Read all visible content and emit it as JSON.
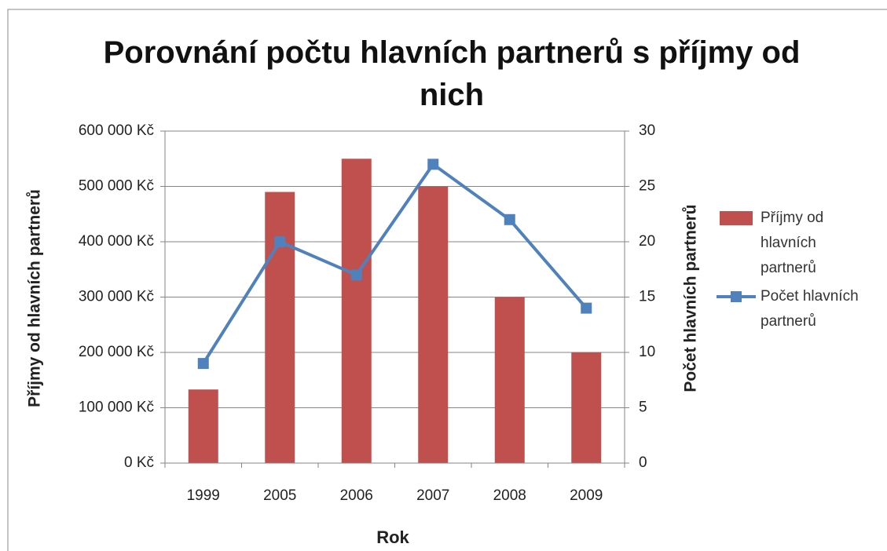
{
  "chart_data": {
    "type": "bar-line",
    "title": "Porovnání počtu hlavních partnerů s příjmy od nich",
    "xlabel": "Rok",
    "ylabel": "Příjmy od hlavních partnerů",
    "y2label": "Počet hlavních partnerů",
    "categories": [
      "1999",
      "2005",
      "2006",
      "2007",
      "2008",
      "2009"
    ],
    "series": [
      {
        "name": "Příjmy od hlavních partnerů",
        "type": "bar",
        "color": "#c0504d",
        "values": [
          133000,
          490000,
          550000,
          500000,
          300000,
          200000
        ]
      },
      {
        "name": "Počet hlavních partnerů",
        "type": "line",
        "axis": "y2",
        "color": "#4f81bd",
        "values": [
          9,
          20,
          17,
          27,
          22,
          14
        ]
      }
    ],
    "ylim": [
      0,
      600000
    ],
    "yticks": [
      {
        "value": 0,
        "label": "0 Kč"
      },
      {
        "value": 100000,
        "label": "100 000 Kč"
      },
      {
        "value": 200000,
        "label": "200 000 Kč"
      },
      {
        "value": 300000,
        "label": "300 000 Kč"
      },
      {
        "value": 400000,
        "label": "400 000 Kč"
      },
      {
        "value": 500000,
        "label": "500 000 Kč"
      },
      {
        "value": 600000,
        "label": "600 000 Kč"
      }
    ],
    "y2lim": [
      0,
      30
    ],
    "y2ticks": [
      0,
      5,
      10,
      15,
      20,
      25,
      30
    ],
    "grid": true,
    "legend": "right"
  }
}
